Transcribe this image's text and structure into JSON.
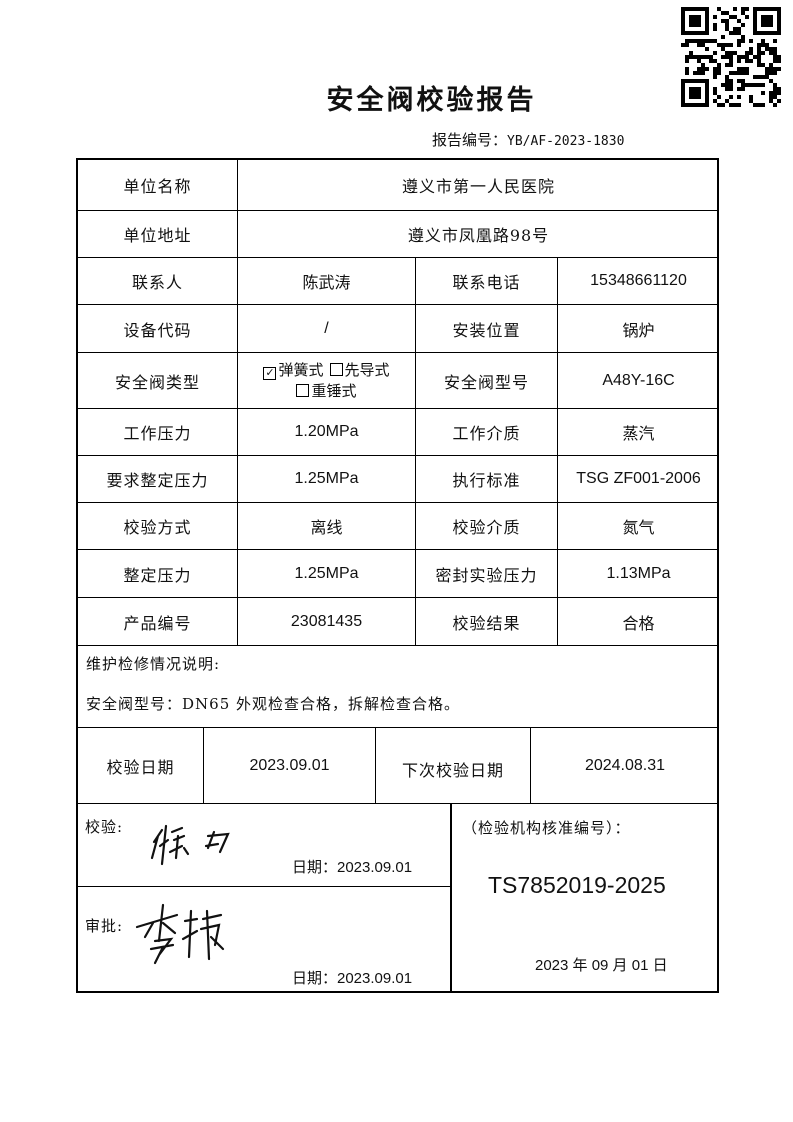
{
  "title": "安全阀校验报告",
  "report_no": {
    "label": "报告编号：",
    "value": "YB/AF-2023-1830"
  },
  "rows": {
    "unit_name": {
      "label": "单位名称",
      "value": "遵义市第一人民医院"
    },
    "unit_address": {
      "label": "单位地址",
      "value": "遵义市凤凰路98号"
    },
    "contact": {
      "label": "联系人",
      "value": "陈武涛",
      "label2": "联系电话",
      "value2": "15348661120"
    },
    "device_code": {
      "label": "设备代码",
      "value": "/",
      "label2": "安装位置",
      "value2": "锅炉"
    },
    "valve_type": {
      "label": "安全阀类型",
      "options": [
        {
          "label": "弹簧式",
          "checked": true
        },
        {
          "label": "先导式",
          "checked": false
        },
        {
          "label": "重锤式",
          "checked": false
        }
      ],
      "label2": "安全阀型号",
      "value2": "A48Y-16C"
    },
    "work_pressure": {
      "label": "工作压力",
      "value": "1.20MPa",
      "label2": "工作介质",
      "value2": "蒸汽"
    },
    "req_set_pressure": {
      "label": "要求整定压力",
      "value": "1.25MPa",
      "label2": "执行标准",
      "value2": "TSG ZF001-2006"
    },
    "method": {
      "label": "校验方式",
      "value": "离线",
      "label2": "校验介质",
      "value2": "氮气"
    },
    "set_pressure": {
      "label": "整定压力",
      "value": "1.25MPa",
      "label2": "密封实验压力",
      "value2": "1.13MPa"
    },
    "product_no": {
      "label": "产品编号",
      "value": "23081435",
      "label2": "校验结果",
      "value2": "合格"
    }
  },
  "maintenance": {
    "label": "维护检修情况说明:",
    "text": "安全阀型号：DN65 外观检查合格，拆解检查合格。"
  },
  "dates": {
    "label": "校验日期",
    "value": "2023.09.01",
    "next_label": "下次校验日期",
    "next_value": "2024.08.31"
  },
  "check": {
    "label": "校验:",
    "signature": "徐力",
    "date": "日期：2023.09.01"
  },
  "approve": {
    "label": "审批:",
    "signature": "李伟",
    "date": "日期：2023.09.01"
  },
  "org": {
    "label": "（检验机构核准编号）：",
    "code": "TS7852019-2025",
    "date": "2023 年 09 月 01 日"
  }
}
